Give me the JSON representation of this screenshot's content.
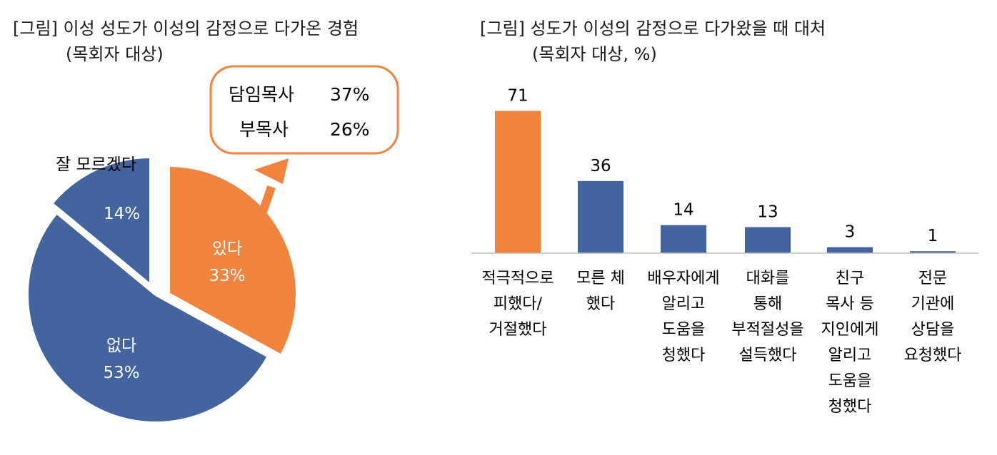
{
  "chart_data": [
    {
      "type": "pie",
      "title": "[그림] 이성 성도가 이성의 감정으로 다가온 경험",
      "subtitle": "(목회자 대상)",
      "slices": [
        {
          "label": "있다",
          "value": 33,
          "value_text": "33%",
          "color": "#F0843F",
          "exploded": true
        },
        {
          "label": "없다",
          "value": 53,
          "value_text": "53%",
          "color": "#43649E",
          "exploded": false
        },
        {
          "label": "잘 모르겠다",
          "value": 14,
          "value_text": "14%",
          "color": "#43649E",
          "exploded": true
        }
      ],
      "callout": {
        "rows": [
          {
            "label": "담임목사",
            "value": "37%"
          },
          {
            "label": "부목사",
            "value": "26%"
          }
        ],
        "border_color": "#F0843F",
        "arrow_color": "#F0843F"
      }
    },
    {
      "type": "bar",
      "title": "[그림] 성도가 이성의 감정으로 다가왔을 때 대처",
      "subtitle": "(목회자 대상, %)",
      "categories": [
        [
          "적극적으로",
          "피했다/",
          "거절했다"
        ],
        [
          "모른 체",
          "했다"
        ],
        [
          "배우자에게",
          "알리고",
          "도움을",
          "청했다"
        ],
        [
          "대화를",
          "통해",
          "부적절성을",
          "설득했다"
        ],
        [
          "친구",
          "목사 등",
          "지인에게",
          "알리고",
          "도움을",
          "청했다"
        ],
        [
          "전문",
          "기관에",
          "상담을",
          "요청했다"
        ]
      ],
      "values": [
        71,
        36,
        14,
        13,
        3,
        1
      ],
      "colors": [
        "#F0843F",
        "#43649E",
        "#43649E",
        "#43649E",
        "#43649E",
        "#43649E"
      ],
      "ylim": [
        0,
        100
      ]
    }
  ]
}
